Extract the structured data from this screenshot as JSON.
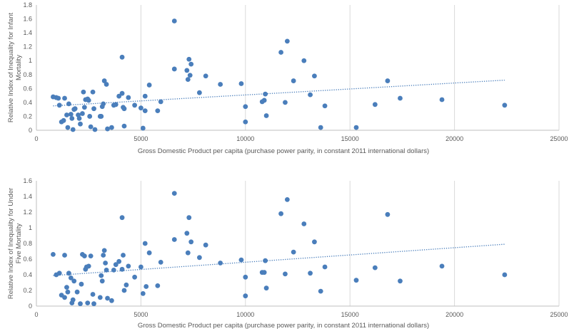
{
  "chart_data": [
    {
      "type": "scatter",
      "title": "",
      "xlabel": "Gross Domestic Product per capita (purchase power parity, in constant 2011 international dollars)",
      "ylabel": "Relative Index of Inequality for Infant Mortality",
      "ylabel_lines": [
        "Relative Index of Inequality for Infant",
        "Mortality"
      ],
      "xlim": [
        0,
        25000
      ],
      "ylim": [
        0,
        1.8
      ],
      "xticks": [
        0,
        5000,
        10000,
        15000,
        20000,
        25000
      ],
      "xtick_labels": [
        "0",
        "5000",
        "10000",
        "15000",
        "20000",
        "25000"
      ],
      "yticks": [
        0,
        0.2,
        0.4,
        0.6,
        0.8,
        1,
        1.2,
        1.4,
        1.6,
        1.8
      ],
      "ytick_labels": [
        "0",
        "0.2",
        "0.4",
        "0.6",
        "0.8",
        "1",
        "1.2",
        "1.4",
        "1.6",
        "1.8"
      ],
      "grid": "vertical",
      "trendline": {
        "type": "linear",
        "style": "dotted",
        "x": [
          800,
          22400
        ],
        "y": [
          0.35,
          0.72
        ]
      },
      "points": [
        [
          800,
          0.48
        ],
        [
          950,
          0.47
        ],
        [
          1050,
          0.46
        ],
        [
          1100,
          0.36
        ],
        [
          1200,
          0.12
        ],
        [
          1300,
          0.14
        ],
        [
          1350,
          0.46
        ],
        [
          1450,
          0.22
        ],
        [
          1500,
          0.04
        ],
        [
          1550,
          0.38
        ],
        [
          1650,
          0.23
        ],
        [
          1700,
          0.17
        ],
        [
          1750,
          0.01
        ],
        [
          1800,
          0.3
        ],
        [
          1850,
          0.31
        ],
        [
          2000,
          0.22
        ],
        [
          2050,
          0.17
        ],
        [
          2100,
          0.09
        ],
        [
          2200,
          0.24
        ],
        [
          2250,
          0.55
        ],
        [
          2300,
          0.33
        ],
        [
          2350,
          0.44
        ],
        [
          2450,
          0.45
        ],
        [
          2500,
          0.43
        ],
        [
          2550,
          0.2
        ],
        [
          2600,
          0.05
        ],
        [
          2700,
          0.55
        ],
        [
          2750,
          0.31
        ],
        [
          2800,
          0.01
        ],
        [
          3050,
          0.2
        ],
        [
          3100,
          0.2
        ],
        [
          3150,
          0.34
        ],
        [
          3200,
          0.38
        ],
        [
          3250,
          0.71
        ],
        [
          3350,
          0.66
        ],
        [
          3400,
          0.02
        ],
        [
          3600,
          0.04
        ],
        [
          3700,
          0.36
        ],
        [
          3800,
          0.37
        ],
        [
          3950,
          0.49
        ],
        [
          4100,
          1.05
        ],
        [
          4100,
          0.53
        ],
        [
          4150,
          0.33
        ],
        [
          4200,
          0.31
        ],
        [
          4400,
          0.47
        ],
        [
          4200,
          0.06
        ],
        [
          4700,
          0.36
        ],
        [
          5000,
          0.32
        ],
        [
          5100,
          0.03
        ],
        [
          5200,
          0.28
        ],
        [
          5200,
          0.49
        ],
        [
          5400,
          0.65
        ],
        [
          5800,
          0.28
        ],
        [
          5950,
          0.41
        ],
        [
          6600,
          1.57
        ],
        [
          6600,
          0.88
        ],
        [
          7200,
          0.86
        ],
        [
          7250,
          0.73
        ],
        [
          7300,
          1.02
        ],
        [
          7350,
          0.79
        ],
        [
          7400,
          0.95
        ],
        [
          7800,
          0.54
        ],
        [
          8100,
          0.78
        ],
        [
          8800,
          0.66
        ],
        [
          9800,
          0.67
        ],
        [
          10000,
          0.34
        ],
        [
          10000,
          0.12
        ],
        [
          10800,
          0.41
        ],
        [
          10900,
          0.43
        ],
        [
          10950,
          0.52
        ],
        [
          11000,
          0.21
        ],
        [
          11700,
          1.12
        ],
        [
          12000,
          1.28
        ],
        [
          11900,
          0.4
        ],
        [
          12300,
          0.71
        ],
        [
          12800,
          1.0
        ],
        [
          13100,
          0.51
        ],
        [
          13300,
          0.78
        ],
        [
          13600,
          0.04
        ],
        [
          13800,
          0.35
        ],
        [
          15300,
          0.04
        ],
        [
          16200,
          0.37
        ],
        [
          16800,
          0.71
        ],
        [
          17400,
          0.46
        ],
        [
          19400,
          0.44
        ],
        [
          22400,
          0.36
        ]
      ]
    },
    {
      "type": "scatter",
      "title": "",
      "xlabel": "Gross Domestic Product per capita (purchase power parity, in constant 2011 international dollars)",
      "ylabel": "Relative Index of Inequality for Under Five Mortality",
      "ylabel_lines": [
        "Relative Index of Inequality for Under",
        "Five Mortality"
      ],
      "xlim": [
        0,
        25000
      ],
      "ylim": [
        0,
        1.6
      ],
      "xticks": [
        0,
        5000,
        10000,
        15000,
        20000,
        25000
      ],
      "xtick_labels": [
        "0",
        "5000",
        "10000",
        "15000",
        "20000",
        "25000"
      ],
      "yticks": [
        0,
        0.2,
        0.4,
        0.6,
        0.8,
        1,
        1.2,
        1.4,
        1.6
      ],
      "ytick_labels": [
        "0",
        "0.2",
        "0.4",
        "0.6",
        "0.8",
        "1",
        "1.2",
        "1.4",
        "1.6"
      ],
      "grid": "vertical",
      "trendline": {
        "type": "linear",
        "style": "dotted",
        "x": [
          800,
          22400
        ],
        "y": [
          0.39,
          0.79
        ]
      },
      "points": [
        [
          800,
          0.66
        ],
        [
          950,
          0.4
        ],
        [
          1100,
          0.42
        ],
        [
          1200,
          0.14
        ],
        [
          1350,
          0.65
        ],
        [
          1350,
          0.11
        ],
        [
          1450,
          0.24
        ],
        [
          1500,
          0.18
        ],
        [
          1550,
          0.42
        ],
        [
          1650,
          0.36
        ],
        [
          1700,
          0.04
        ],
        [
          1750,
          0.08
        ],
        [
          1800,
          0.32
        ],
        [
          1950,
          0.18
        ],
        [
          2100,
          0.03
        ],
        [
          2150,
          0.28
        ],
        [
          2200,
          0.66
        ],
        [
          2300,
          0.64
        ],
        [
          2350,
          0.47
        ],
        [
          2400,
          0.5
        ],
        [
          2450,
          0.04
        ],
        [
          2500,
          0.51
        ],
        [
          2600,
          0.64
        ],
        [
          2700,
          0.15
        ],
        [
          2750,
          0.03
        ],
        [
          3050,
          0.11
        ],
        [
          3100,
          0.39
        ],
        [
          3150,
          0.32
        ],
        [
          3200,
          0.65
        ],
        [
          3250,
          0.71
        ],
        [
          3300,
          0.55
        ],
        [
          3350,
          0.46
        ],
        [
          3400,
          0.1
        ],
        [
          3600,
          0.07
        ],
        [
          3700,
          0.46
        ],
        [
          3800,
          0.53
        ],
        [
          3950,
          0.57
        ],
        [
          4100,
          1.13
        ],
        [
          4100,
          0.47
        ],
        [
          4150,
          0.65
        ],
        [
          4200,
          0.2
        ],
        [
          4300,
          0.27
        ],
        [
          4400,
          0.51
        ],
        [
          4700,
          0.37
        ],
        [
          5000,
          0.5
        ],
        [
          5100,
          0.16
        ],
        [
          5200,
          0.8
        ],
        [
          5250,
          0.25
        ],
        [
          5400,
          0.68
        ],
        [
          5800,
          0.26
        ],
        [
          5950,
          0.56
        ],
        [
          6600,
          1.44
        ],
        [
          6600,
          0.85
        ],
        [
          7200,
          0.93
        ],
        [
          7250,
          0.68
        ],
        [
          7300,
          1.13
        ],
        [
          7400,
          0.82
        ],
        [
          7800,
          0.62
        ],
        [
          8100,
          0.78
        ],
        [
          8800,
          0.55
        ],
        [
          9800,
          0.59
        ],
        [
          10000,
          0.37
        ],
        [
          10000,
          0.13
        ],
        [
          10800,
          0.43
        ],
        [
          10900,
          0.43
        ],
        [
          10950,
          0.58
        ],
        [
          11000,
          0.23
        ],
        [
          11700,
          1.18
        ],
        [
          12000,
          1.36
        ],
        [
          11900,
          0.41
        ],
        [
          12300,
          0.69
        ],
        [
          12800,
          1.05
        ],
        [
          13100,
          0.42
        ],
        [
          13300,
          0.82
        ],
        [
          13600,
          0.19
        ],
        [
          13800,
          0.5
        ],
        [
          15300,
          0.33
        ],
        [
          16200,
          0.49
        ],
        [
          16800,
          1.17
        ],
        [
          17400,
          0.32
        ],
        [
          19400,
          0.51
        ],
        [
          22400,
          0.4
        ]
      ]
    }
  ],
  "colors": {
    "marker": "#4a7ebb",
    "trendline": "#4a7ebb",
    "grid": "#d9d9d9",
    "axis": "#bfbfbf",
    "text": "#595959"
  }
}
